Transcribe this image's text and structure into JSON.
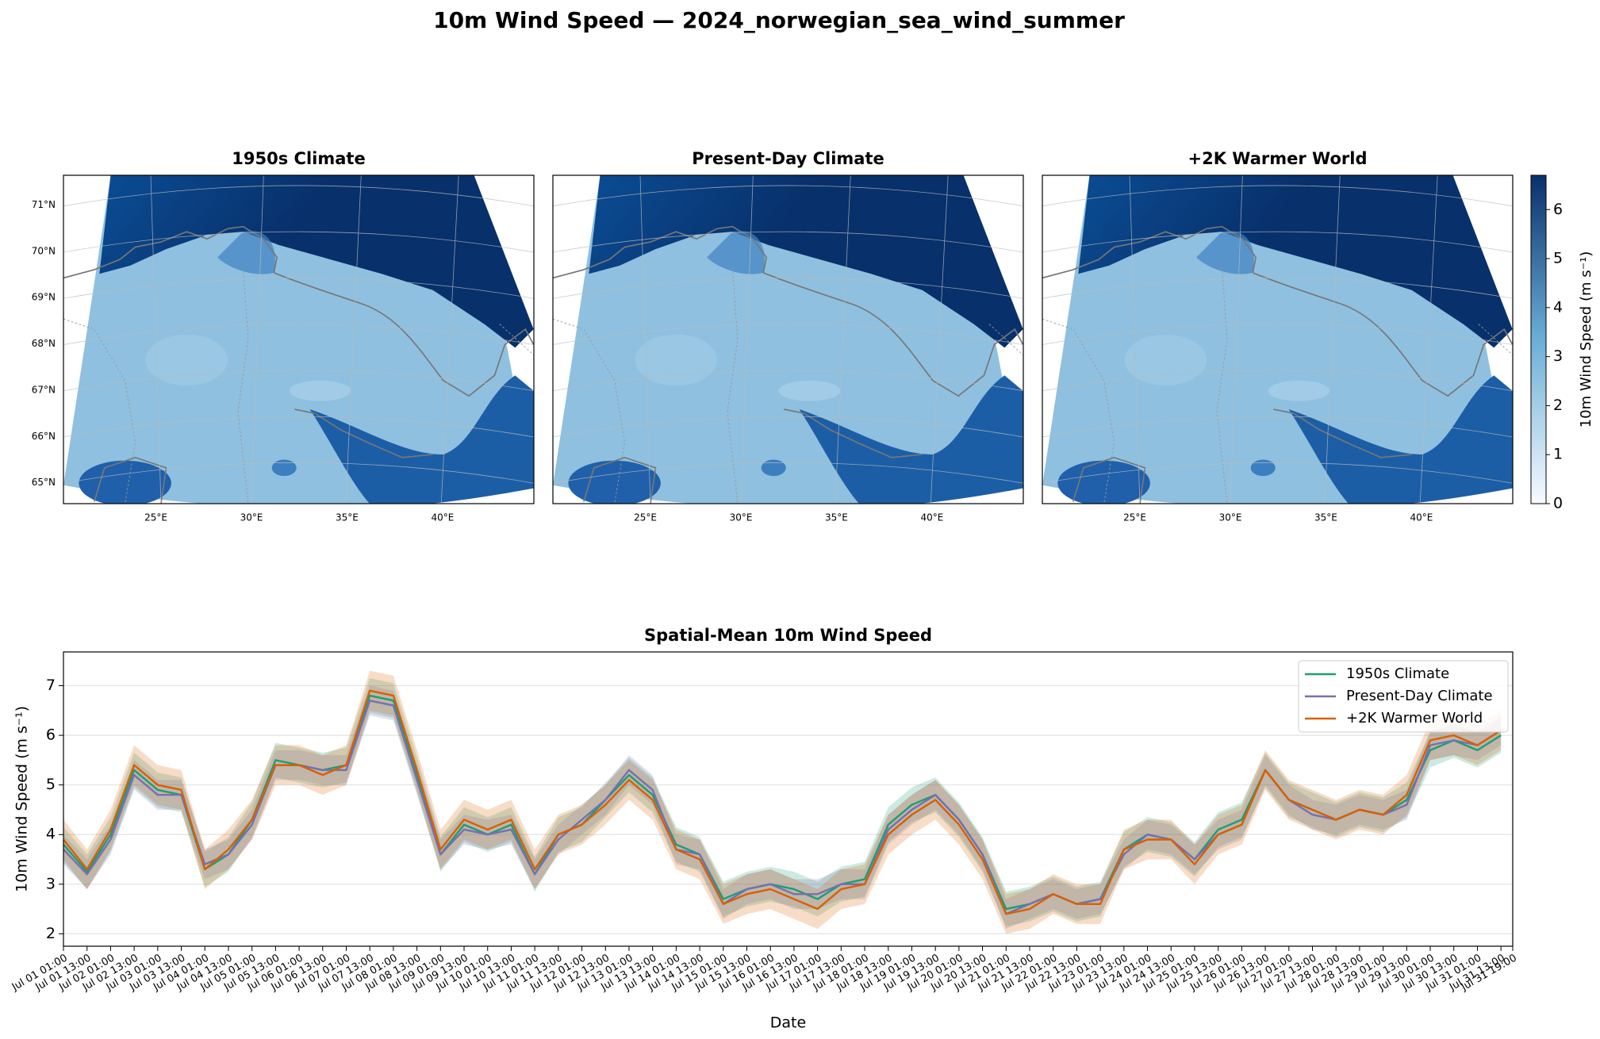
{
  "title": "10m Wind Speed — 2024_norwegian_sea_wind_summer",
  "chart_data": [
    {
      "type": "map",
      "title": "1950s Climate",
      "xlim": [
        20.16,
        44.78
      ],
      "ylim": [
        64.55,
        71.64
      ],
      "xticks": [
        {
          "value": 25,
          "label": "25°E"
        },
        {
          "value": 30,
          "label": "30°E"
        },
        {
          "value": 35,
          "label": "35°E"
        },
        {
          "value": 40,
          "label": "40°E"
        }
      ],
      "yticks": [
        {
          "value": 65,
          "label": "65°N"
        },
        {
          "value": 66,
          "label": "66°N"
        },
        {
          "value": 67,
          "label": "67°N"
        },
        {
          "value": 68,
          "label": "68°N"
        },
        {
          "value": 69,
          "label": "69°N"
        },
        {
          "value": 70,
          "label": "70°N"
        },
        {
          "value": 71,
          "label": "71°N"
        }
      ]
    },
    {
      "type": "map",
      "title": "Present-Day Climate",
      "xlim": [
        20.16,
        44.78
      ],
      "ylim": [
        64.55,
        71.64
      ],
      "xticks": [
        {
          "value": 25,
          "label": "25°E"
        },
        {
          "value": 30,
          "label": "30°E"
        },
        {
          "value": 35,
          "label": "35°E"
        },
        {
          "value": 40,
          "label": "40°E"
        }
      ]
    },
    {
      "type": "map",
      "title": "+2K Warmer World",
      "xlim": [
        20.16,
        44.78
      ],
      "ylim": [
        64.55,
        71.64
      ],
      "xticks": [
        {
          "value": 25,
          "label": "25°E"
        },
        {
          "value": 30,
          "label": "30°E"
        },
        {
          "value": 35,
          "label": "35°E"
        },
        {
          "value": 40,
          "label": "40°E"
        }
      ]
    },
    {
      "type": "colorbar",
      "label": "10m Wind Speed (m s⁻¹)",
      "clim": [
        0,
        6.7
      ],
      "ticks": [
        0,
        1,
        2,
        3,
        4,
        5,
        6
      ],
      "colors": [
        "#f7fbff",
        "#08306b"
      ]
    },
    {
      "type": "line",
      "title": "Spatial-Mean 10m Wind Speed",
      "xlabel": "Date",
      "ylabel": "10m Wind Speed (m s⁻¹)",
      "xlim": [
        "Jul 01 01:00",
        "Jul 31 19:00"
      ],
      "ylim": [
        1.75,
        7.68
      ],
      "yticks": [
        2,
        3,
        4,
        5,
        6,
        7
      ],
      "grid": true,
      "legend": "upper right",
      "x": [
        "Jul 01 01:00",
        "Jul 01 13:00",
        "Jul 02 01:00",
        "Jul 02 13:00",
        "Jul 03 01:00",
        "Jul 03 13:00",
        "Jul 04 01:00",
        "Jul 04 13:00",
        "Jul 05 01:00",
        "Jul 05 13:00",
        "Jul 06 01:00",
        "Jul 06 13:00",
        "Jul 07 01:00",
        "Jul 07 13:00",
        "Jul 08 01:00",
        "Jul 08 13:00",
        "Jul 09 01:00",
        "Jul 09 13:00",
        "Jul 10 01:00",
        "Jul 10 13:00",
        "Jul 11 01:00",
        "Jul 11 13:00",
        "Jul 12 01:00",
        "Jul 12 13:00",
        "Jul 13 01:00",
        "Jul 13 13:00",
        "Jul 14 01:00",
        "Jul 14 13:00",
        "Jul 15 01:00",
        "Jul 15 13:00",
        "Jul 16 01:00",
        "Jul 16 13:00",
        "Jul 17 01:00",
        "Jul 17 13:00",
        "Jul 18 01:00",
        "Jul 18 13:00",
        "Jul 19 01:00",
        "Jul 19 13:00",
        "Jul 20 01:00",
        "Jul 20 13:00",
        "Jul 21 01:00",
        "Jul 21 13:00",
        "Jul 22 01:00",
        "Jul 22 13:00",
        "Jul 23 01:00",
        "Jul 23 13:00",
        "Jul 24 01:00",
        "Jul 24 13:00",
        "Jul 25 01:00",
        "Jul 25 13:00",
        "Jul 26 01:00",
        "Jul 26 13:00",
        "Jul 27 01:00",
        "Jul 27 13:00",
        "Jul 28 01:00",
        "Jul 28 13:00",
        "Jul 29 01:00",
        "Jul 29 13:00",
        "Jul 30 01:00",
        "Jul 30 13:00",
        "Jul 31 01:00",
        "Jul 31 13:00"
      ],
      "xticks": [
        "Jul 01 01:00",
        "Jul 01 13:00",
        "Jul 02 01:00",
        "Jul 02 13:00",
        "Jul 03 01:00",
        "Jul 03 13:00",
        "Jul 04 01:00",
        "Jul 04 13:00",
        "Jul 05 01:00",
        "Jul 05 13:00",
        "Jul 06 01:00",
        "Jul 06 13:00",
        "Jul 07 01:00",
        "Jul 07 13:00",
        "Jul 08 01:00",
        "Jul 08 13:00",
        "Jul 09 01:00",
        "Jul 09 13:00",
        "Jul 10 01:00",
        "Jul 10 13:00",
        "Jul 11 01:00",
        "Jul 11 13:00",
        "Jul 12 01:00",
        "Jul 12 13:00",
        "Jul 13 01:00",
        "Jul 13 13:00",
        "Jul 14 01:00",
        "Jul 14 13:00",
        "Jul 15 01:00",
        "Jul 15 13:00",
        "Jul 16 01:00",
        "Jul 16 13:00",
        "Jul 17 01:00",
        "Jul 17 13:00",
        "Jul 18 01:00",
        "Jul 18 13:00",
        "Jul 19 01:00",
        "Jul 19 13:00",
        "Jul 20 01:00",
        "Jul 20 13:00",
        "Jul 21 01:00",
        "Jul 21 13:00",
        "Jul 22 01:00",
        "Jul 22 13:00",
        "Jul 23 01:00",
        "Jul 23 13:00",
        "Jul 24 01:00",
        "Jul 24 13:00",
        "Jul 25 01:00",
        "Jul 25 13:00",
        "Jul 26 01:00",
        "Jul 26 13:00",
        "Jul 27 01:00",
        "Jul 27 13:00",
        "Jul 28 01:00",
        "Jul 28 13:00",
        "Jul 29 01:00",
        "Jul 29 13:00",
        "Jul 30 01:00",
        "Jul 30 13:00",
        "Jul 31 01:00",
        "Jul 31 13:00",
        "Jul 31 19:00"
      ],
      "series": [
        {
          "name": "1950s Climate",
          "color": "#1b9e77",
          "spread": 0.35,
          "values": [
            3.8,
            3.25,
            4.0,
            5.3,
            4.9,
            4.8,
            3.3,
            3.6,
            4.3,
            5.5,
            5.4,
            5.3,
            5.4,
            6.8,
            6.7,
            5.2,
            3.6,
            4.2,
            4.0,
            4.2,
            3.2,
            4.0,
            4.2,
            4.7,
            5.2,
            4.8,
            3.8,
            3.6,
            2.7,
            2.9,
            3.0,
            2.9,
            2.7,
            3.0,
            3.1,
            4.2,
            4.6,
            4.8,
            4.3,
            3.6,
            2.5,
            2.6,
            2.8,
            2.6,
            2.7,
            3.7,
            4.0,
            3.9,
            3.5,
            4.1,
            4.3,
            5.3,
            4.7,
            4.5,
            4.3,
            4.5,
            4.4,
            4.7,
            5.7,
            5.9,
            5.7,
            6.0
          ]
        },
        {
          "name": "Present-Day Climate",
          "color": "#7570b3",
          "spread": 0.3,
          "values": [
            3.7,
            3.2,
            3.9,
            5.2,
            4.8,
            4.8,
            3.4,
            3.6,
            4.2,
            5.4,
            5.4,
            5.3,
            5.3,
            6.7,
            6.6,
            5.1,
            3.6,
            4.1,
            4.0,
            4.1,
            3.2,
            3.9,
            4.3,
            4.7,
            5.3,
            4.9,
            3.7,
            3.6,
            2.6,
            2.9,
            3.0,
            2.8,
            2.8,
            3.0,
            3.0,
            4.1,
            4.5,
            4.8,
            4.3,
            3.6,
            2.4,
            2.6,
            2.8,
            2.6,
            2.7,
            3.6,
            4.0,
            3.9,
            3.5,
            4.0,
            4.2,
            5.3,
            4.7,
            4.4,
            4.3,
            4.5,
            4.4,
            4.6,
            5.8,
            5.9,
            5.8,
            6.1
          ]
        },
        {
          "name": "+2K Warmer World",
          "color": "#d95f02",
          "spread": 0.4,
          "values": [
            3.9,
            3.3,
            4.1,
            5.4,
            5.0,
            4.9,
            3.3,
            3.7,
            4.3,
            5.4,
            5.4,
            5.2,
            5.4,
            6.9,
            6.8,
            5.3,
            3.7,
            4.3,
            4.1,
            4.3,
            3.3,
            4.0,
            4.2,
            4.6,
            5.1,
            4.7,
            3.7,
            3.5,
            2.6,
            2.8,
            2.9,
            2.7,
            2.5,
            2.9,
            3.0,
            4.0,
            4.4,
            4.7,
            4.2,
            3.5,
            2.4,
            2.5,
            2.8,
            2.6,
            2.6,
            3.7,
            3.9,
            3.9,
            3.4,
            4.0,
            4.2,
            5.3,
            4.7,
            4.5,
            4.3,
            4.5,
            4.4,
            4.8,
            5.9,
            6.0,
            5.8,
            6.1
          ]
        }
      ]
    }
  ]
}
